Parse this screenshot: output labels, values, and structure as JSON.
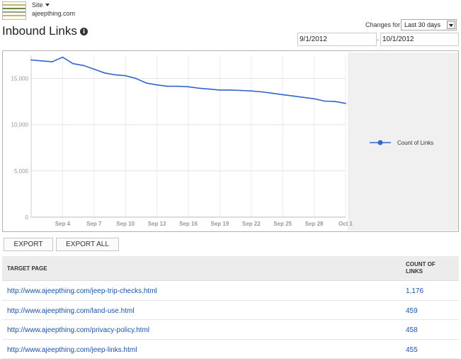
{
  "site": {
    "selector_label": "Site",
    "url": "ajeepthing.com"
  },
  "page": {
    "title": "Inbound Links"
  },
  "filters": {
    "changes_label": "Changes for",
    "period": "Last 30 days",
    "date_from": "9/1/2012",
    "date_separator": "-",
    "date_to": "10/1/2012"
  },
  "chart_data": {
    "type": "line",
    "title": "",
    "xlabel": "",
    "ylabel": "",
    "ylim": [
      0,
      17500
    ],
    "y_ticks": [
      0,
      5000,
      10000,
      15000
    ],
    "y_tick_labels": [
      "0",
      "5,000",
      "10,000",
      "15,000"
    ],
    "x_ticks": [
      4,
      7,
      10,
      13,
      16,
      19,
      22,
      25,
      28,
      31
    ],
    "x_tick_labels": [
      "Sep 4",
      "Sep 7",
      "Sep 10",
      "Sep 13",
      "Sep 16",
      "Sep 19",
      "Sep 22",
      "Sep 25",
      "Sep 28",
      "Oct 1"
    ],
    "x": [
      1,
      2,
      3,
      4,
      5,
      6,
      7,
      8,
      9,
      10,
      11,
      12,
      13,
      14,
      15,
      16,
      17,
      18,
      19,
      20,
      21,
      22,
      23,
      24,
      25,
      26,
      27,
      28,
      29,
      30,
      31
    ],
    "series": [
      {
        "name": "Count of Links",
        "color": "#3366cc",
        "values": [
          17000,
          16900,
          16800,
          17300,
          16600,
          16400,
          16000,
          15600,
          15400,
          15300,
          15000,
          14500,
          14300,
          14150,
          14150,
          14100,
          13950,
          13850,
          13750,
          13750,
          13700,
          13650,
          13550,
          13400,
          13250,
          13100,
          12950,
          12800,
          12550,
          12500,
          12300
        ]
      }
    ],
    "legend_position": "right",
    "grid": true
  },
  "actions": {
    "export": "EXPORT",
    "export_all": "EXPORT ALL"
  },
  "table": {
    "col_target": "TARGET PAGE",
    "col_count": "COUNT OF LINKS",
    "rows": [
      {
        "url": "http://www.ajeepthing.com/jeep-trip-checks.html",
        "count": "1,176"
      },
      {
        "url": "http://www.ajeepthing.com/land-use.html",
        "count": "459"
      },
      {
        "url": "http://www.ajeepthing.com/privacy-policy.html",
        "count": "458"
      },
      {
        "url": "http://www.ajeepthing.com/jeep-links.html",
        "count": "455"
      }
    ]
  },
  "icons": {
    "info": "info-icon",
    "dropdown": "chevron-down-icon"
  }
}
